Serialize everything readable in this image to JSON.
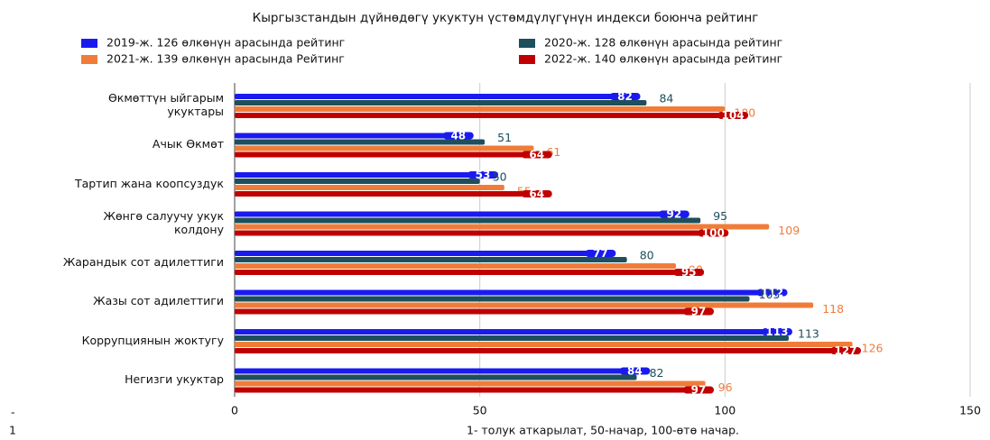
{
  "chart_data": {
    "type": "bar",
    "orientation": "horizontal",
    "title": "Кыргызстандын дүйнөдөгү укуктун үстөмдүлүгүнүн индекси боюнча рейтинг",
    "x_label": "1- толук аткарылат, 50-начар, 100-өтө начар.",
    "side_text": [
      "-",
      "1"
    ],
    "categories": [
      "Өкмөттүн ыйгарым укуктары",
      "Ачык Өкмөт",
      "Тартип жана коопсуздук",
      "Жөнгө салуучу укук колдону",
      "Жарандык сот адилеттиги",
      "Жазы сот адилеттиги",
      "Коррупциянын жоктугу",
      "Негизги укуктар"
    ],
    "series": [
      {
        "name": "2019-ж. 126 өлкөнүн арасында рейтинг",
        "color": "#1a1af0",
        "values": [
          82,
          48,
          53,
          92,
          77,
          112,
          113,
          84
        ]
      },
      {
        "name": "2020-ж. 128 өлкөнүн арасында рейтинг",
        "color": "#1d4f5c",
        "values": [
          84,
          51,
          50,
          95,
          80,
          105,
          113,
          82
        ]
      },
      {
        "name": "2021-ж. 139 өлкөнүн арасында Рейтинг",
        "color": "#f07c3a",
        "values": [
          100,
          61,
          55,
          109,
          90,
          118,
          126,
          96
        ]
      },
      {
        "name": "2022-ж. 140 өлкөнүн арасында рейтинг",
        "color": "#c00000",
        "values": [
          104,
          64,
          64,
          100,
          95,
          97,
          127,
          97
        ]
      }
    ],
    "xlim": [
      0,
      150
    ],
    "xticks": [
      0,
      50,
      100,
      150
    ],
    "grid": true
  }
}
